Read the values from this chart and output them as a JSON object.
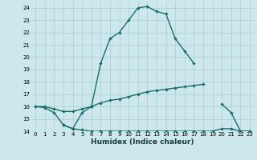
{
  "xlabel": "Humidex (Indice chaleur)",
  "x": [
    0,
    1,
    2,
    3,
    4,
    5,
    6,
    7,
    8,
    9,
    10,
    11,
    12,
    13,
    14,
    15,
    16,
    17,
    18,
    19,
    20,
    21,
    22,
    23
  ],
  "line1_y": [
    16.0,
    15.9,
    15.5,
    14.5,
    14.2,
    15.5,
    16.0,
    19.5,
    21.5,
    22.0,
    23.0,
    24.0,
    24.1,
    23.7,
    23.5,
    21.5,
    20.5,
    19.5,
    null,
    null,
    16.2,
    15.5,
    14.0,
    14.0
  ],
  "line2_y": [
    16.0,
    null,
    null,
    null,
    null,
    null,
    null,
    null,
    null,
    null,
    null,
    null,
    null,
    null,
    null,
    null,
    null,
    null,
    17.8,
    null,
    null,
    null,
    null,
    null
  ],
  "line2_seg1": [
    16.0,
    16.0,
    15.8,
    15.6,
    15.6,
    15.8,
    16.0,
    16.3,
    16.5,
    16.6,
    16.8,
    17.0,
    17.2,
    17.3,
    17.4,
    17.5,
    17.6,
    17.7,
    17.8,
    null,
    null,
    null,
    null,
    null
  ],
  "line3_y": [
    null,
    null,
    null,
    14.5,
    14.2,
    14.1,
    14.0,
    14.0,
    14.0,
    14.0,
    14.0,
    14.0,
    14.0,
    14.0,
    14.0,
    14.0,
    14.0,
    14.0,
    14.0,
    14.0,
    14.2,
    14.2,
    14.0,
    14.0
  ],
  "bg_color": "#cce8ec",
  "line_color": "#1a6e6a",
  "grid_color": "#aacfd4",
  "ylim": [
    14,
    24.5
  ],
  "xlim": [
    -0.5,
    23.5
  ]
}
